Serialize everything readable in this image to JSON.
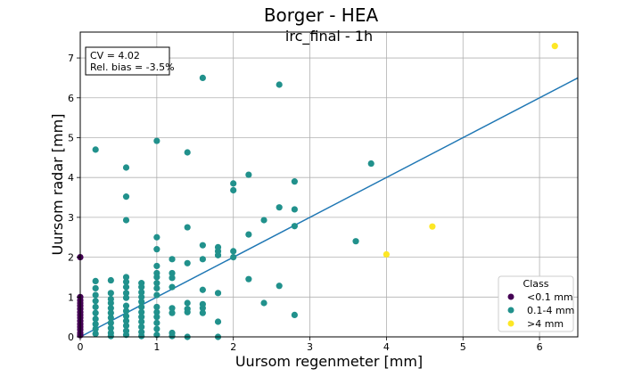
{
  "chart_data": {
    "type": "scatter",
    "suptitle": "Borger - HEA",
    "title": "irc_final - 1h",
    "xlabel": "Uursom regenmeter [mm]",
    "ylabel": "Uursom radar [mm]",
    "xlim": [
      0,
      6.5
    ],
    "ylim": [
      0,
      7.65
    ],
    "xticks": [
      "0",
      "1",
      "2",
      "3",
      "4",
      "5",
      "6"
    ],
    "yticks": [
      "0",
      "1",
      "2",
      "3",
      "4",
      "5",
      "6",
      "7"
    ],
    "grid": true,
    "stats": [
      "CV = 4.02",
      "Rel. bias = -3.5%"
    ],
    "legend": {
      "title": "Class",
      "position": "lower-right",
      "entries": [
        {
          "label": "<0.1 mm",
          "color": "#440154"
        },
        {
          "label": "0.1-4 mm",
          "color": "#21918c"
        },
        {
          "label": ">4 mm",
          "color": "#fde725"
        }
      ]
    },
    "fit_line": {
      "color": "#1f77b4",
      "from": [
        0,
        0
      ],
      "to": [
        6.5,
        6.5
      ]
    },
    "series": [
      {
        "name": "<0.1 mm",
        "color": "#440154",
        "points": [
          [
            0,
            2.0
          ],
          [
            0,
            1.0
          ],
          [
            0,
            0.92
          ],
          [
            0,
            0.85
          ],
          [
            0,
            0.78
          ],
          [
            0,
            0.7
          ],
          [
            0,
            0.62
          ],
          [
            0,
            0.55
          ],
          [
            0,
            0.48
          ],
          [
            0,
            0.4
          ],
          [
            0,
            0.32
          ],
          [
            0,
            0.25
          ],
          [
            0,
            0.18
          ],
          [
            0,
            0.1
          ],
          [
            0,
            0.04
          ]
        ]
      },
      {
        "name": "0.1-4 mm",
        "color": "#21918c",
        "points": [
          [
            0.2,
            4.7
          ],
          [
            0.6,
            4.25
          ],
          [
            0.6,
            3.52
          ],
          [
            0.6,
            2.93
          ],
          [
            1.0,
            4.92
          ],
          [
            1.0,
            2.5
          ],
          [
            1.0,
            2.2
          ],
          [
            1.4,
            4.63
          ],
          [
            1.4,
            2.75
          ],
          [
            1.6,
            6.5
          ],
          [
            1.6,
            2.3
          ],
          [
            1.6,
            1.95
          ],
          [
            1.8,
            2.25
          ],
          [
            1.8,
            2.15
          ],
          [
            1.8,
            2.05
          ],
          [
            2.0,
            3.85
          ],
          [
            2.0,
            3.68
          ],
          [
            2.0,
            2.15
          ],
          [
            2.0,
            2.0
          ],
          [
            2.2,
            4.07
          ],
          [
            2.2,
            2.57
          ],
          [
            2.2,
            1.45
          ],
          [
            2.4,
            2.93
          ],
          [
            2.4,
            0.85
          ],
          [
            2.6,
            6.33
          ],
          [
            2.6,
            3.25
          ],
          [
            2.6,
            1.28
          ],
          [
            2.8,
            3.9
          ],
          [
            2.8,
            3.2
          ],
          [
            2.8,
            2.78
          ],
          [
            2.8,
            0.55
          ],
          [
            3.6,
            2.4
          ],
          [
            3.8,
            4.35
          ],
          [
            1.2,
            1.95
          ],
          [
            1.2,
            1.6
          ],
          [
            1.2,
            1.48
          ],
          [
            1.2,
            1.25
          ],
          [
            1.2,
            0.72
          ],
          [
            1.2,
            0.6
          ],
          [
            1.2,
            0.1
          ],
          [
            1.2,
            0.02
          ],
          [
            1.4,
            1.85
          ],
          [
            1.4,
            0.85
          ],
          [
            1.4,
            0.7
          ],
          [
            1.4,
            0.62
          ],
          [
            1.4,
            0.0
          ],
          [
            1.6,
            1.18
          ],
          [
            1.6,
            0.82
          ],
          [
            1.6,
            0.72
          ],
          [
            1.6,
            0.6
          ],
          [
            1.8,
            1.1
          ],
          [
            1.8,
            0.38
          ],
          [
            1.8,
            0.0
          ],
          [
            0.2,
            1.4
          ],
          [
            0.2,
            1.22
          ],
          [
            0.2,
            1.05
          ],
          [
            0.2,
            0.9
          ],
          [
            0.2,
            0.75
          ],
          [
            0.2,
            0.6
          ],
          [
            0.2,
            0.45
          ],
          [
            0.2,
            0.32
          ],
          [
            0.2,
            0.2
          ],
          [
            0.2,
            0.08
          ],
          [
            0.4,
            1.42
          ],
          [
            0.4,
            1.1
          ],
          [
            0.4,
            0.95
          ],
          [
            0.4,
            0.85
          ],
          [
            0.4,
            0.72
          ],
          [
            0.4,
            0.6
          ],
          [
            0.4,
            0.48
          ],
          [
            0.4,
            0.35
          ],
          [
            0.4,
            0.22
          ],
          [
            0.4,
            0.1
          ],
          [
            0.4,
            0.02
          ],
          [
            0.6,
            1.5
          ],
          [
            0.6,
            1.38
          ],
          [
            0.6,
            1.25
          ],
          [
            0.6,
            1.1
          ],
          [
            0.6,
            0.98
          ],
          [
            0.6,
            0.78
          ],
          [
            0.6,
            0.65
          ],
          [
            0.6,
            0.52
          ],
          [
            0.6,
            0.4
          ],
          [
            0.6,
            0.28
          ],
          [
            0.6,
            0.15
          ],
          [
            0.6,
            0.05
          ],
          [
            0.8,
            1.35
          ],
          [
            0.8,
            1.25
          ],
          [
            0.8,
            1.12
          ],
          [
            0.8,
            1.0
          ],
          [
            0.8,
            0.88
          ],
          [
            0.8,
            0.75
          ],
          [
            0.8,
            0.62
          ],
          [
            0.8,
            0.5
          ],
          [
            0.8,
            0.38
          ],
          [
            0.8,
            0.25
          ],
          [
            0.8,
            0.12
          ],
          [
            0.8,
            0.02
          ],
          [
            1.0,
            1.78
          ],
          [
            1.0,
            1.6
          ],
          [
            1.0,
            1.5
          ],
          [
            1.0,
            1.35
          ],
          [
            1.0,
            1.22
          ],
          [
            1.0,
            1.05
          ],
          [
            1.0,
            0.75
          ],
          [
            1.0,
            0.62
          ],
          [
            1.0,
            0.5
          ],
          [
            1.0,
            0.35
          ],
          [
            1.0,
            0.2
          ],
          [
            1.0,
            0.05
          ]
        ]
      },
      {
        "name": ">4 mm",
        "color": "#fde725",
        "points": [
          [
            4.0,
            2.07
          ],
          [
            4.6,
            2.77
          ],
          [
            6.2,
            7.3
          ]
        ]
      }
    ]
  }
}
